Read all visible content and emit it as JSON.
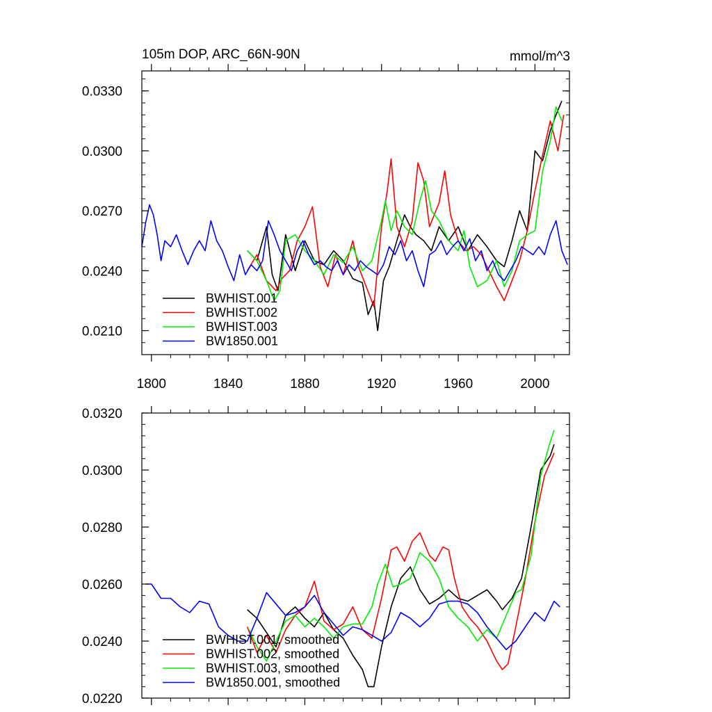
{
  "chart_data": [
    {
      "type": "line",
      "title": "105m DOP, ARC_66N-90N",
      "units": "mmol/m^3",
      "xlim": [
        1795,
        2018
      ],
      "ylim": [
        0.0198,
        0.034
      ],
      "xticks": [
        1800,
        1840,
        1880,
        1920,
        1960,
        2000
      ],
      "xtick_labels": [
        "1800",
        "1840",
        "1880",
        "1920",
        "1960",
        "2000"
      ],
      "yticks": [
        0.021,
        0.024,
        0.027,
        0.03,
        0.033
      ],
      "ytick_labels": [
        "0.0210",
        "0.0240",
        "0.0270",
        "0.0300",
        "0.0330"
      ],
      "legend": [
        "BWHIST.001",
        "BWHIST.002",
        "BWHIST.003",
        "BW1850.001"
      ],
      "legend_position": "lower-left",
      "series": [
        {
          "name": "BWHIST.001",
          "color": "#000000",
          "x": [
            1850,
            1855,
            1860,
            1863,
            1866,
            1870,
            1875,
            1880,
            1885,
            1890,
            1895,
            1900,
            1905,
            1910,
            1913,
            1916,
            1918,
            1921,
            1924,
            1928,
            1932,
            1935,
            1938,
            1942,
            1946,
            1950,
            1955,
            1960,
            1965,
            1970,
            1975,
            1980,
            1984,
            1988,
            1992,
            1996,
            2000,
            2004,
            2008,
            2011,
            2014
          ],
          "y": [
            0.025,
            0.0245,
            0.0262,
            0.0238,
            0.023,
            0.0258,
            0.024,
            0.0255,
            0.0245,
            0.0243,
            0.025,
            0.0245,
            0.0236,
            0.0234,
            0.0218,
            0.0225,
            0.021,
            0.0235,
            0.0242,
            0.0255,
            0.0268,
            0.0262,
            0.0258,
            0.0255,
            0.025,
            0.0262,
            0.0255,
            0.0262,
            0.025,
            0.0258,
            0.0252,
            0.0245,
            0.0242,
            0.0255,
            0.027,
            0.026,
            0.03,
            0.0295,
            0.031,
            0.0318,
            0.0325
          ]
        },
        {
          "name": "BWHIST.002",
          "color": "#ff0000",
          "x": [
            1850,
            1855,
            1860,
            1865,
            1868,
            1872,
            1876,
            1880,
            1884,
            1888,
            1892,
            1896,
            1900,
            1905,
            1908,
            1912,
            1916,
            1920,
            1923,
            1925,
            1928,
            1932,
            1936,
            1939,
            1942,
            1945,
            1950,
            1953,
            1956,
            1960,
            1964,
            1968,
            1972,
            1976,
            1980,
            1984,
            1988,
            1992,
            1996,
            2000,
            2004,
            2008,
            2012,
            2015
          ],
          "y": [
            0.024,
            0.0248,
            0.0235,
            0.023,
            0.0236,
            0.024,
            0.0255,
            0.0262,
            0.0272,
            0.0242,
            0.0232,
            0.0248,
            0.0238,
            0.0255,
            0.0242,
            0.0232,
            0.0222,
            0.0262,
            0.028,
            0.0296,
            0.0262,
            0.0252,
            0.0265,
            0.0294,
            0.0285,
            0.0262,
            0.0274,
            0.029,
            0.0268,
            0.0255,
            0.025,
            0.0252,
            0.0248,
            0.024,
            0.0232,
            0.0225,
            0.0235,
            0.0245,
            0.026,
            0.028,
            0.0298,
            0.0315,
            0.03,
            0.0318
          ]
        },
        {
          "name": "BWHIST.003",
          "color": "#00ee00",
          "x": [
            1850,
            1855,
            1860,
            1864,
            1867,
            1870,
            1875,
            1880,
            1885,
            1890,
            1895,
            1900,
            1905,
            1910,
            1915,
            1920,
            1922,
            1925,
            1928,
            1932,
            1936,
            1940,
            1943,
            1946,
            1950,
            1955,
            1960,
            1963,
            1966,
            1970,
            1975,
            1980,
            1984,
            1988,
            1992,
            1996,
            2000,
            2004,
            2008,
            2011,
            2014
          ],
          "y": [
            0.025,
            0.0245,
            0.0235,
            0.0225,
            0.023,
            0.0255,
            0.0258,
            0.025,
            0.0245,
            0.0238,
            0.0248,
            0.0244,
            0.0252,
            0.024,
            0.0245,
            0.0265,
            0.0275,
            0.026,
            0.027,
            0.0262,
            0.0258,
            0.0275,
            0.0285,
            0.027,
            0.0265,
            0.0255,
            0.025,
            0.026,
            0.0242,
            0.0232,
            0.0235,
            0.0245,
            0.0232,
            0.024,
            0.0255,
            0.0258,
            0.026,
            0.029,
            0.0305,
            0.0322,
            0.0315
          ]
        },
        {
          "name": "BW1850.001",
          "color": "#0000ff",
          "x": [
            1795,
            1797,
            1799,
            1801,
            1803,
            1805,
            1807,
            1810,
            1813,
            1816,
            1819,
            1822,
            1825,
            1828,
            1831,
            1834,
            1837,
            1840,
            1843,
            1846,
            1849,
            1852,
            1855,
            1858,
            1861,
            1864,
            1867,
            1870,
            1873,
            1876,
            1879,
            1882,
            1885,
            1888,
            1891,
            1894,
            1897,
            1900,
            1903,
            1906,
            1909,
            1912,
            1915,
            1918,
            1921,
            1924,
            1927,
            1930,
            1933,
            1936,
            1939,
            1942,
            1945,
            1948,
            1951,
            1954,
            1957,
            1960,
            1963,
            1966,
            1969,
            1972,
            1975,
            1978,
            1981,
            1984,
            1987,
            1990,
            1993,
            1996,
            1999,
            2002,
            2005,
            2008,
            2011,
            2014,
            2017
          ],
          "y": [
            0.0252,
            0.0264,
            0.0273,
            0.0268,
            0.0258,
            0.0245,
            0.0255,
            0.0252,
            0.0258,
            0.025,
            0.0243,
            0.025,
            0.0255,
            0.025,
            0.0265,
            0.0255,
            0.025,
            0.0242,
            0.0235,
            0.0248,
            0.0238,
            0.0243,
            0.024,
            0.0245,
            0.0265,
            0.0258,
            0.025,
            0.0245,
            0.024,
            0.025,
            0.0255,
            0.0248,
            0.0243,
            0.0245,
            0.0242,
            0.024,
            0.0245,
            0.0238,
            0.0243,
            0.024,
            0.0245,
            0.0242,
            0.024,
            0.0238,
            0.0243,
            0.0252,
            0.0248,
            0.0255,
            0.0245,
            0.025,
            0.024,
            0.0232,
            0.0248,
            0.025,
            0.0255,
            0.0248,
            0.0252,
            0.0255,
            0.025,
            0.0256,
            0.0245,
            0.025,
            0.024,
            0.0245,
            0.0238,
            0.0235,
            0.024,
            0.0245,
            0.0252,
            0.025,
            0.0248,
            0.0252,
            0.0248,
            0.0258,
            0.0265,
            0.025,
            0.0243
          ]
        }
      ]
    },
    {
      "type": "line",
      "xlim": [
        1795,
        2018
      ],
      "ylim": [
        0.022,
        0.032
      ],
      "xticks": [
        1800,
        1840,
        1880,
        1920,
        1960,
        2000
      ],
      "yticks": [
        0.022,
        0.024,
        0.026,
        0.028,
        0.03,
        0.032
      ],
      "ytick_labels": [
        "0.0220",
        "0.0240",
        "0.0260",
        "0.0280",
        "0.0300",
        "0.0320"
      ],
      "legend": [
        "BWHIST.001, smoothed",
        "BWHIST.002, smoothed",
        "BWHIST.003, smoothed",
        "BW1850.001, smoothed"
      ],
      "legend_position": "lower-left",
      "series": [
        {
          "name": "BWHIST.001, smoothed",
          "color": "#000000",
          "x": [
            1850,
            1855,
            1860,
            1865,
            1870,
            1875,
            1880,
            1885,
            1890,
            1895,
            1900,
            1905,
            1910,
            1913,
            1916,
            1920,
            1925,
            1930,
            1935,
            1940,
            1945,
            1950,
            1955,
            1960,
            1965,
            1970,
            1975,
            1980,
            1983,
            1988,
            1993,
            1998,
            2003,
            2008,
            2010
          ],
          "y": [
            0.0251,
            0.0248,
            0.0243,
            0.0238,
            0.0249,
            0.0252,
            0.0248,
            0.0245,
            0.025,
            0.0244,
            0.0241,
            0.0235,
            0.023,
            0.0224,
            0.0224,
            0.0238,
            0.0252,
            0.0262,
            0.0266,
            0.0258,
            0.0253,
            0.0255,
            0.0258,
            0.0255,
            0.0254,
            0.0256,
            0.0258,
            0.0254,
            0.0251,
            0.0255,
            0.0262,
            0.028,
            0.03,
            0.0305,
            0.0309
          ]
        },
        {
          "name": "BWHIST.002, smoothed",
          "color": "#ff0000",
          "x": [
            1850,
            1855,
            1860,
            1865,
            1870,
            1875,
            1880,
            1885,
            1890,
            1895,
            1900,
            1905,
            1910,
            1915,
            1920,
            1925,
            1928,
            1932,
            1936,
            1940,
            1945,
            1948,
            1952,
            1955,
            1958,
            1962,
            1966,
            1970,
            1975,
            1980,
            1983,
            1986,
            1990,
            1995,
            2000,
            2005,
            2010
          ],
          "y": [
            0.0245,
            0.0236,
            0.0242,
            0.0236,
            0.0244,
            0.0249,
            0.0252,
            0.0261,
            0.0247,
            0.0244,
            0.0246,
            0.0252,
            0.0244,
            0.0241,
            0.0255,
            0.0272,
            0.0273,
            0.0268,
            0.0275,
            0.0278,
            0.027,
            0.0268,
            0.0273,
            0.0272,
            0.0262,
            0.0252,
            0.0248,
            0.0245,
            0.024,
            0.0233,
            0.023,
            0.0232,
            0.0245,
            0.0262,
            0.0282,
            0.0298,
            0.0306
          ]
        },
        {
          "name": "BWHIST.003, smoothed",
          "color": "#00ee00",
          "x": [
            1851,
            1855,
            1860,
            1865,
            1870,
            1875,
            1880,
            1885,
            1890,
            1895,
            1900,
            1905,
            1910,
            1915,
            1918,
            1922,
            1926,
            1930,
            1935,
            1940,
            1945,
            1950,
            1955,
            1960,
            1965,
            1970,
            1975,
            1980,
            1985,
            1990,
            1993,
            1998,
            2003,
            2008,
            2010
          ],
          "y": [
            0.0244,
            0.0238,
            0.0233,
            0.024,
            0.0247,
            0.0249,
            0.0245,
            0.0248,
            0.0245,
            0.0241,
            0.0245,
            0.0246,
            0.0246,
            0.0252,
            0.026,
            0.0267,
            0.0259,
            0.026,
            0.0262,
            0.0271,
            0.0268,
            0.0262,
            0.0252,
            0.0248,
            0.0245,
            0.024,
            0.0244,
            0.0241,
            0.0249,
            0.0257,
            0.0258,
            0.027,
            0.0298,
            0.031,
            0.0314
          ]
        },
        {
          "name": "BW1850.001, smoothed",
          "color": "#0000ff",
          "x": [
            1797,
            1800,
            1805,
            1810,
            1815,
            1820,
            1825,
            1830,
            1835,
            1840,
            1845,
            1850,
            1855,
            1860,
            1865,
            1870,
            1875,
            1880,
            1885,
            1890,
            1895,
            1900,
            1905,
            1910,
            1915,
            1920,
            1925,
            1930,
            1935,
            1940,
            1945,
            1950,
            1955,
            1960,
            1965,
            1970,
            1975,
            1980,
            1985,
            1990,
            1995,
            2000,
            2005,
            2010,
            2013
          ],
          "y": [
            0.026,
            0.026,
            0.0255,
            0.0255,
            0.0252,
            0.025,
            0.0254,
            0.0253,
            0.0245,
            0.0242,
            0.024,
            0.024,
            0.0248,
            0.0257,
            0.0253,
            0.0249,
            0.025,
            0.0252,
            0.0256,
            0.025,
            0.0246,
            0.0242,
            0.0245,
            0.0244,
            0.0242,
            0.024,
            0.0243,
            0.025,
            0.0248,
            0.0245,
            0.0248,
            0.0253,
            0.0254,
            0.0254,
            0.0253,
            0.025,
            0.0245,
            0.0241,
            0.0237,
            0.024,
            0.0245,
            0.025,
            0.0247,
            0.0254,
            0.0252
          ]
        }
      ]
    }
  ]
}
